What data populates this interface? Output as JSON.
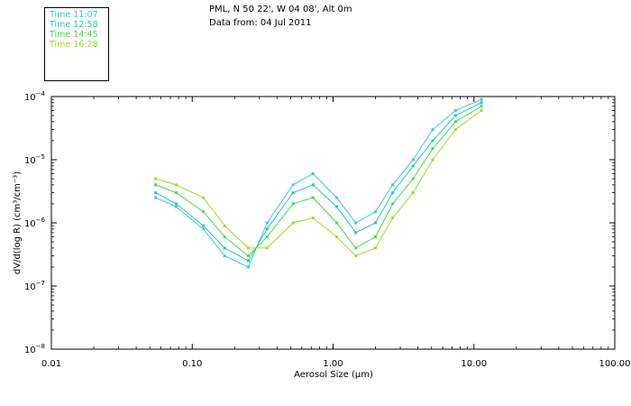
{
  "chart_data": {
    "type": "line",
    "title": "PML, N 50 22', W 04 08', Alt 0m",
    "subtitle": "Data from: 04 Jul 2011",
    "xlabel": "Aerosol Size (µm)",
    "ylabel": "dV/d(log R) (cm³/cm⁻³)",
    "xscale": "log",
    "yscale": "log",
    "xlim": [
      0.01,
      100
    ],
    "ylim": [
      1e-08,
      0.0001
    ],
    "xticks": [
      {
        "value": 0.01,
        "label": "0.01"
      },
      {
        "value": 0.1,
        "label": "0.10"
      },
      {
        "value": 1,
        "label": "1.00"
      },
      {
        "value": 10,
        "label": "10.00"
      },
      {
        "value": 100,
        "label": "100.00"
      }
    ],
    "yticks": [
      {
        "value": 1e-08,
        "mant": "10",
        "exp": "−8"
      },
      {
        "value": 1e-07,
        "mant": "10",
        "exp": "−7"
      },
      {
        "value": 1e-06,
        "mant": "10",
        "exp": "−6"
      },
      {
        "value": 1e-05,
        "mant": "10",
        "exp": "−5"
      },
      {
        "value": 0.0001,
        "mant": "10",
        "exp": "−4"
      }
    ],
    "legend": [
      {
        "label": "Time 11:07",
        "color": "#33ccdd"
      },
      {
        "label": "Time 12:58",
        "color": "#22ccaa"
      },
      {
        "label": "Time 14:45",
        "color": "#44dd44"
      },
      {
        "label": "Time 16:28",
        "color": "#99dd22"
      }
    ],
    "x": [
      0.055,
      0.077,
      0.12,
      0.17,
      0.25,
      0.34,
      0.52,
      0.72,
      1.06,
      1.45,
      2.0,
      2.65,
      3.7,
      5.1,
      7.4,
      11.3
    ],
    "series": [
      {
        "name": "Time 11:07",
        "color": "#33ccdd",
        "values": [
          2.5e-06,
          1.8e-06,
          8e-07,
          3e-07,
          2e-07,
          1e-06,
          4e-06,
          6e-06,
          2.5e-06,
          1e-06,
          1.5e-06,
          4e-06,
          1e-05,
          3e-05,
          6e-05,
          9e-05
        ]
      },
      {
        "name": "Time 12:58",
        "color": "#22ccaa",
        "values": [
          3e-06,
          2e-06,
          9e-07,
          4e-07,
          2.5e-07,
          8e-07,
          3e-06,
          4e-06,
          1.8e-06,
          7e-07,
          1e-06,
          3e-06,
          8e-06,
          2e-05,
          5e-05,
          8e-05
        ]
      },
      {
        "name": "Time 14:45",
        "color": "#44dd44",
        "values": [
          4e-06,
          3e-06,
          1.5e-06,
          6e-07,
          3e-07,
          6e-07,
          2e-06,
          2.5e-06,
          1e-06,
          4e-07,
          6e-07,
          2e-06,
          5e-06,
          1.5e-05,
          4e-05,
          7e-05
        ]
      },
      {
        "name": "Time 16:28",
        "color": "#99dd22",
        "values": [
          5e-06,
          4e-06,
          2.5e-06,
          9e-07,
          4e-07,
          4e-07,
          1e-06,
          1.2e-06,
          6e-07,
          3e-07,
          4e-07,
          1.2e-06,
          3e-06,
          1e-05,
          3e-05,
          6e-05
        ]
      }
    ]
  }
}
